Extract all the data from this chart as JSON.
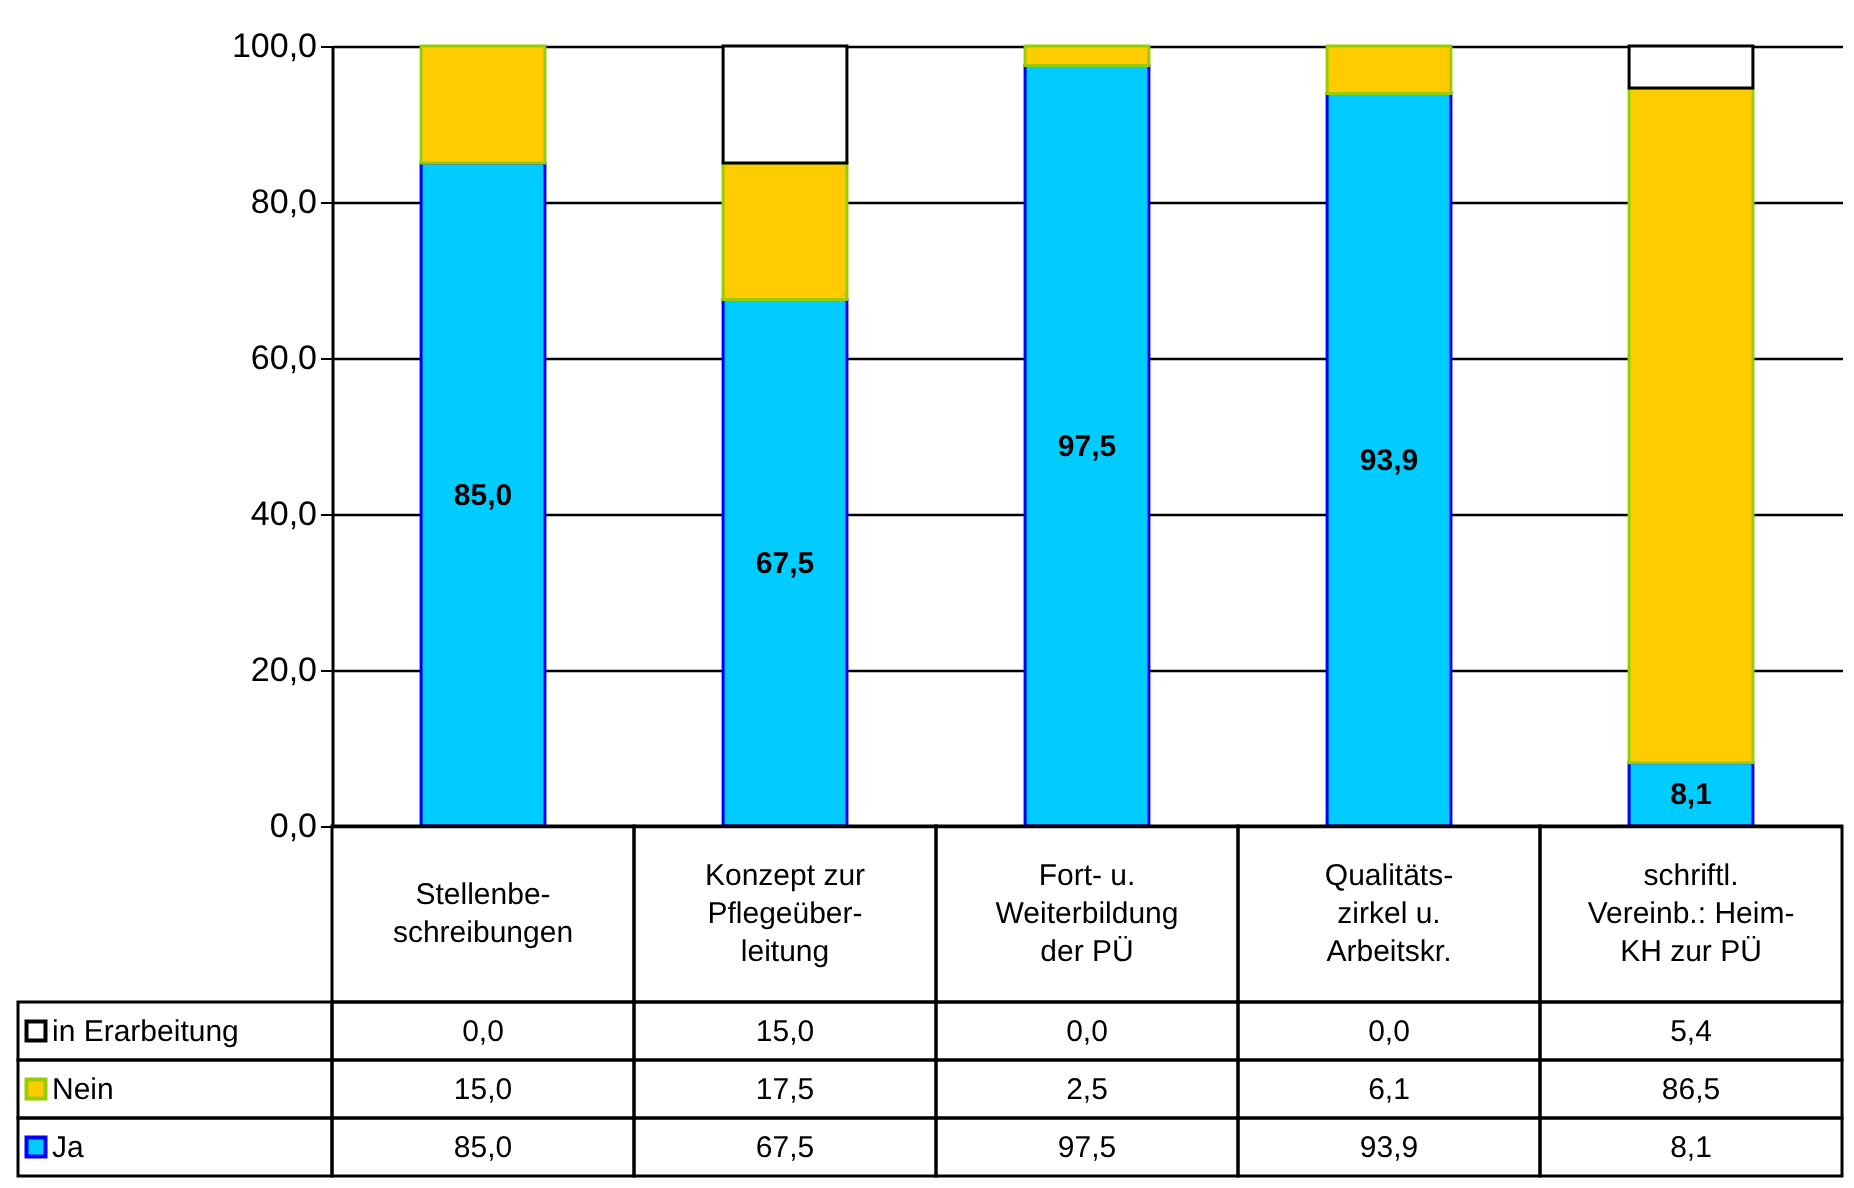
{
  "chart_data": {
    "type": "bar",
    "stacked": true,
    "categories": [
      "Stellenbe-\nschreibungen",
      "Konzept zur\nPflegeüber-\nleitung",
      "Fort- u.\nWeiterbildung\nder PÜ",
      "Qualitäts-\nzirkel u.\nArbeitskr.",
      "schriftl.\nVereinb.: Heim-\nKH zur PÜ"
    ],
    "series": [
      {
        "name": "Ja",
        "color": "#00ccff",
        "values": [
          85.0,
          67.5,
          97.5,
          93.9,
          8.1
        ],
        "value_labels": [
          "85,0",
          "67,5",
          "97,5",
          "93,9",
          "8,1"
        ]
      },
      {
        "name": "Nein",
        "color": "#ffcc00",
        "values": [
          15.0,
          17.5,
          2.5,
          6.1,
          86.5
        ],
        "value_labels": [
          "15,0",
          "17,5",
          "2,5",
          "6,1",
          "86,5"
        ]
      },
      {
        "name": "in Erarbeitung",
        "color": "#ffffff",
        "values": [
          0.0,
          15.0,
          0.0,
          0.0,
          5.4
        ],
        "value_labels": [
          "0,0",
          "15,0",
          "0,0",
          "0,0",
          "5,4"
        ]
      }
    ],
    "annotations": [
      "85,0",
      "67,5",
      "97,5",
      "93,9",
      "8,1"
    ],
    "ylim": [
      0,
      100
    ],
    "yticks": [
      {
        "value": 0,
        "label": "0,0"
      },
      {
        "value": 20,
        "label": "20,0"
      },
      {
        "value": 40,
        "label": "40,0"
      },
      {
        "value": 60,
        "label": "60,0"
      },
      {
        "value": 80,
        "label": "80,0"
      },
      {
        "value": 100,
        "label": "100,0"
      }
    ],
    "grid": "y",
    "legend": "left"
  }
}
